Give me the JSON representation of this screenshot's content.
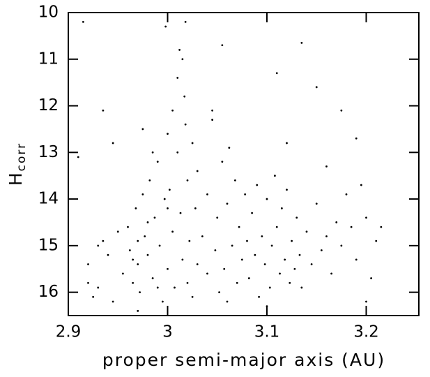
{
  "chart_data": {
    "type": "scatter",
    "xlabel": "proper semi-major axis (AU)",
    "ylabel": {
      "main": "H",
      "sub": "corr"
    },
    "xlim": [
      2.9,
      3.253
    ],
    "ylim": [
      10,
      16.5
    ],
    "y_inverted": true,
    "xticks": [
      2.9,
      3,
      3.1,
      3.2
    ],
    "yticks": [
      10,
      11,
      12,
      13,
      14,
      15,
      16
    ],
    "color": "#000000",
    "x": [
      2.915,
      2.91,
      2.935,
      2.945,
      2.92,
      2.93,
      2.94,
      2.925,
      2.95,
      2.935,
      2.945,
      2.955,
      2.92,
      2.93,
      2.96,
      2.962,
      2.965,
      2.968,
      2.97,
      2.972,
      2.975,
      2.977,
      2.98,
      2.982,
      2.985,
      2.987,
      2.99,
      2.992,
      2.995,
      2.997,
      3.0,
      3.0,
      3.002,
      3.005,
      3.005,
      3.007,
      3.01,
      3.01,
      3.012,
      3.013,
      3.015,
      3.015,
      3.017,
      3.018,
      3.02,
      3.02,
      3.022,
      3.025,
      3.025,
      3.028,
      3.03,
      2.998,
      3.018,
      2.975,
      2.98,
      2.965,
      2.99,
      3.0,
      2.97,
      2.985,
      3.035,
      3.04,
      3.04,
      3.045,
      3.048,
      3.05,
      3.052,
      3.055,
      3.057,
      3.06,
      3.062,
      3.065,
      3.068,
      3.07,
      3.072,
      3.075,
      3.078,
      3.08,
      3.082,
      3.085,
      3.088,
      3.09,
      3.092,
      3.095,
      3.098,
      3.1,
      3.103,
      3.105,
      3.108,
      3.11,
      3.113,
      3.115,
      3.118,
      3.12,
      3.123,
      3.125,
      3.128,
      3.13,
      3.133,
      3.135,
      3.14,
      3.145,
      3.15,
      3.155,
      3.16,
      3.165,
      3.17,
      3.175,
      3.18,
      3.185,
      3.19,
      3.195,
      3.2,
      3.205,
      3.21,
      3.215,
      3.2,
      3.055,
      3.135,
      3.11,
      3.15,
      3.045,
      3.175,
      3.19,
      3.12,
      3.16,
      3.03,
      3.06,
      3.1,
      2.97
    ],
    "values": [
      10.2,
      13.1,
      12.1,
      12.8,
      15.4,
      15.9,
      15.2,
      16.1,
      14.7,
      14.9,
      16.2,
      15.6,
      15.8,
      15.0,
      14.6,
      15.1,
      15.8,
      14.2,
      15.4,
      16.0,
      13.9,
      14.8,
      15.2,
      13.6,
      15.7,
      14.4,
      13.2,
      15.0,
      16.2,
      14.0,
      12.6,
      15.5,
      13.8,
      14.7,
      12.1,
      15.9,
      11.4,
      13.0,
      10.8,
      14.3,
      11.0,
      15.3,
      11.8,
      12.4,
      13.6,
      15.8,
      14.9,
      12.8,
      16.1,
      14.2,
      15.4,
      10.3,
      10.2,
      12.5,
      14.5,
      15.3,
      15.9,
      14.2,
      14.9,
      13.0,
      14.8,
      15.6,
      13.9,
      12.3,
      15.1,
      14.4,
      16.0,
      13.2,
      15.5,
      14.1,
      12.9,
      15.0,
      13.6,
      15.8,
      14.6,
      15.3,
      13.9,
      14.9,
      15.7,
      14.3,
      15.2,
      13.7,
      16.1,
      14.8,
      15.4,
      14.0,
      15.9,
      15.0,
      13.5,
      14.6,
      15.6,
      14.2,
      15.3,
      13.8,
      15.8,
      14.9,
      15.5,
      14.4,
      15.2,
      15.9,
      14.7,
      15.4,
      14.1,
      15.1,
      14.8,
      15.6,
      14.5,
      15.0,
      13.9,
      14.6,
      15.3,
      13.7,
      14.4,
      15.7,
      14.9,
      14.6,
      16.2,
      10.7,
      10.65,
      11.3,
      11.6,
      12.1,
      12.1,
      12.7,
      12.8,
      13.3,
      13.4,
      16.2,
      16.3,
      16.4
    ]
  }
}
